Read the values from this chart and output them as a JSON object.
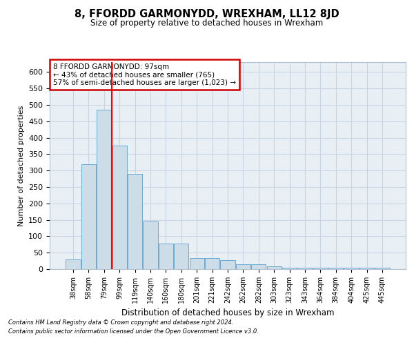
{
  "title": "8, FFORDD GARMONYDD, WREXHAM, LL12 8JD",
  "subtitle": "Size of property relative to detached houses in Wrexham",
  "xlabel": "Distribution of detached houses by size in Wrexham",
  "ylabel": "Number of detached properties",
  "footnote1": "Contains HM Land Registry data © Crown copyright and database right 2024.",
  "footnote2": "Contains public sector information licensed under the Open Government Licence v3.0.",
  "categories": [
    "38sqm",
    "58sqm",
    "79sqm",
    "99sqm",
    "119sqm",
    "140sqm",
    "160sqm",
    "180sqm",
    "201sqm",
    "221sqm",
    "242sqm",
    "262sqm",
    "282sqm",
    "303sqm",
    "323sqm",
    "343sqm",
    "364sqm",
    "384sqm",
    "404sqm",
    "425sqm",
    "445sqm"
  ],
  "values": [
    30,
    320,
    485,
    375,
    290,
    145,
    77,
    77,
    33,
    33,
    28,
    15,
    15,
    8,
    5,
    5,
    5,
    5,
    5,
    5,
    5
  ],
  "bar_color": "#ccdde8",
  "bar_edge_color": "#6aaad4",
  "grid_color": "#c8d4e0",
  "background_color": "#ffffff",
  "plot_bg_color": "#e8eff5",
  "annotation_box_text": "8 FFORDD GARMONYDD: 97sqm\n← 43% of detached houses are smaller (765)\n57% of semi-detached houses are larger (1,023) →",
  "annotation_box_color": "#ffffff",
  "annotation_box_edge_color": "#cc0000",
  "red_line_x": 2.5,
  "ylim": [
    0,
    630
  ],
  "yticks": [
    0,
    50,
    100,
    150,
    200,
    250,
    300,
    350,
    400,
    450,
    500,
    550,
    600
  ]
}
